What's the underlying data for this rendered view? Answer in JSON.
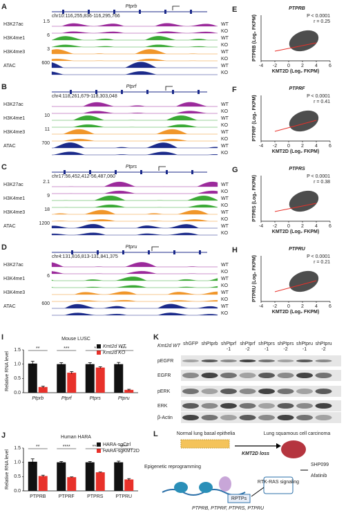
{
  "tracks": {
    "A": {
      "letter": "A",
      "gene": "Ptprb",
      "coords": "chr10:116,255,836-116,295,766",
      "scales": [
        "1.5",
        "6",
        "3",
        "600"
      ]
    },
    "B": {
      "letter": "B",
      "gene": "Ptprf",
      "coords": "chr4:118,261,679-118,303,048",
      "scales": [
        "10",
        "11",
        "700"
      ]
    },
    "C": {
      "letter": "C",
      "gene": "Ptprs",
      "coords": "chr17:56,452,412-56,487,060",
      "scales": [
        "2.1",
        "9",
        "18",
        "1200"
      ]
    },
    "D": {
      "letter": "D",
      "gene": "Ptpru",
      "coords": "chr4:131,816,813-131,841,375",
      "scales": [
        "6",
        "600"
      ]
    },
    "marks": [
      "H3K27ac",
      "H3K4me1",
      "H3K4me3",
      "ATAC"
    ],
    "wt": "WT",
    "ko": "KO"
  },
  "scatter": {
    "xlim": [
      -4,
      6
    ],
    "xticks": [
      -4,
      -2,
      0,
      2,
      4,
      6
    ],
    "xlabel": "KMT2D (Log₂ FKPM)",
    "p": "P < 0.0001",
    "panels": [
      {
        "letter": "E",
        "title": "PTPRB",
        "ylabel": "PTPRB (Log₂ FKPM)",
        "r": "r = 0.25"
      },
      {
        "letter": "F",
        "title": "PTPRF",
        "ylabel": "PTPRF (Log₂ FKPM)",
        "r": "r = 0.41"
      },
      {
        "letter": "G",
        "title": "PTPRS",
        "ylabel": "PTPRS (Log₂ FKPM)",
        "r": "r = 0.38"
      },
      {
        "letter": "H",
        "title": "PTPRU",
        "ylabel": "PTPRU (Log₂ FKPM)",
        "r": "r = 0.21"
      }
    ]
  },
  "bars": [
    {
      "letter": "I",
      "title": "Mouse LUSC",
      "ylabel": "Relative RNA level",
      "ylim": [
        0,
        1.5
      ],
      "yticks": [
        {
          "value": 0,
          "label": "0.0"
        },
        {
          "value": 0.5,
          "label": "0.5"
        },
        {
          "value": 1,
          "label": "1.0"
        },
        {
          "value": 1.5,
          "label": "1.5"
        }
      ],
      "categories": [
        "Ptprb",
        "Ptprf",
        "Ptprs",
        "Ptpru"
      ],
      "significance": [
        "**",
        "***",
        "*",
        "***"
      ],
      "series": [
        {
          "name": "Kmt2d WT",
          "color": "#111111",
          "values": [
            1.02,
            1.0,
            1.0,
            1.0
          ],
          "errors": [
            0.08,
            0.05,
            0.05,
            0.06
          ]
        },
        {
          "name": "Kmt2d KO",
          "color": "#e8312a",
          "values": [
            0.2,
            0.7,
            0.88,
            0.1
          ],
          "errors": [
            0.03,
            0.04,
            0.03,
            0.02
          ]
        }
      ]
    },
    {
      "letter": "J",
      "title": "Human HARA",
      "ylabel": "Relative RNA level",
      "ylim": [
        0,
        1.5
      ],
      "yticks": [
        {
          "value": 0,
          "label": "0.0"
        },
        {
          "value": 0.5,
          "label": "0.5"
        },
        {
          "value": 1,
          "label": "1.0"
        },
        {
          "value": 1.5,
          "label": "1.5"
        }
      ],
      "categories": [
        "PTPRB",
        "PTPRF",
        "PTPRS",
        "PTPRU"
      ],
      "significance": [
        "**",
        "****",
        "***",
        "****"
      ],
      "series": [
        {
          "name": "HARA-sgCtrl",
          "color": "#111111",
          "values": [
            1.02,
            1.0,
            1.0,
            1.0
          ],
          "errors": [
            0.1,
            0.03,
            0.03,
            0.04
          ]
        },
        {
          "name": "HARA-sgKMT2D",
          "color": "#e8312a",
          "values": [
            0.52,
            0.48,
            0.65,
            0.4
          ],
          "errors": [
            0.03,
            0.01,
            0.01,
            0.03
          ]
        }
      ]
    }
  ],
  "blot": {
    "letter": "K",
    "header": "Kmt2d WT",
    "lanes": [
      [
        "shGFP"
      ],
      [
        "shPtprb"
      ],
      [
        "shPtprf",
        "-1"
      ],
      [
        "shPtprf",
        "-2"
      ],
      [
        "shPtprs",
        "-1"
      ],
      [
        "shPtprs",
        "-2"
      ],
      [
        "shPtpru",
        "-1"
      ],
      [
        "shPtpru",
        "-2"
      ]
    ],
    "rows": [
      "pEGFR",
      "EGFR",
      "pERK",
      "ERK",
      "β-Actin"
    ]
  },
  "model": {
    "letter": "L",
    "normal": "Normal lung basal epithelia",
    "cancer": "Lung squamous cell carcinoma",
    "loss": "KMT2D loss",
    "reprog": "Epigenetic reprogramming",
    "drug1": "SHP099",
    "drug2": "Afatinib",
    "signal": "RTK-RAS signaling",
    "rptp": "RPTPs",
    "genes": "PTPRB, PTPRF, PTPRS, PTPRU"
  }
}
